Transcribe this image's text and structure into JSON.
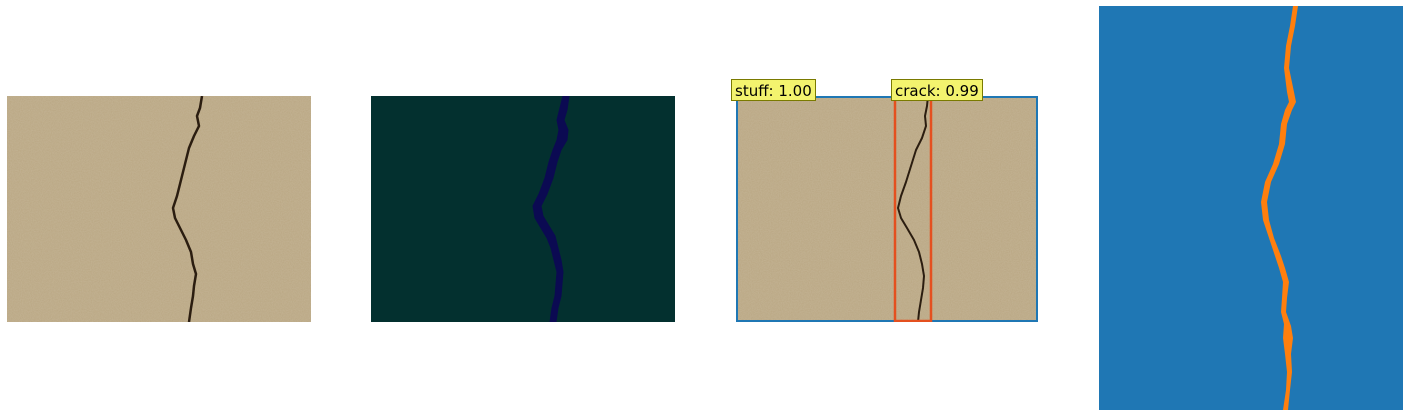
{
  "panels": [
    {
      "name": "original-image"
    },
    {
      "name": "segmentation-mask"
    },
    {
      "name": "detection-overlay"
    },
    {
      "name": "instance-mask"
    }
  ],
  "detections": [
    {
      "label": "stuff: 1.00",
      "class": "stuff",
      "score": 1.0,
      "box_color": "#1f77b4"
    },
    {
      "label": "crack: 0.99",
      "class": "crack",
      "score": 0.99,
      "box_color": "#e4501f"
    }
  ],
  "colors": {
    "concrete": "#b9a682",
    "crack": "#2b1d10",
    "mask_background": "#03302f",
    "mask_crack": "#0b0a52",
    "label_background": "#f3f36e",
    "instance_background": "#1f77b4",
    "instance_crack": "#ff7f0e"
  }
}
